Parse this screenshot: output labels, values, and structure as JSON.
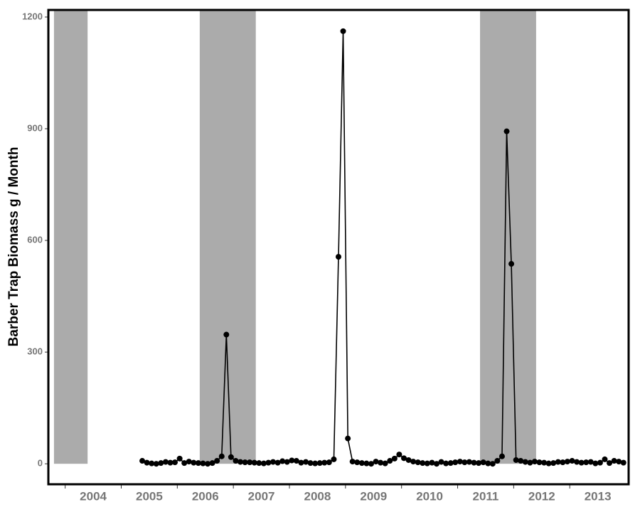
{
  "chart_data": {
    "type": "line",
    "ylabel": "Barber Trap Biomass g / Month",
    "xlim": [
      2003.7,
      2014.05
    ],
    "ylim": [
      -55,
      1219
    ],
    "yticks": [
      0,
      300,
      600,
      900,
      1200
    ],
    "xticks": [
      {
        "value": 2004.5,
        "label": "2004"
      },
      {
        "value": 2005.5,
        "label": "2005"
      },
      {
        "value": 2006.5,
        "label": "2006"
      },
      {
        "value": 2007.5,
        "label": "2007"
      },
      {
        "value": 2008.5,
        "label": "2008"
      },
      {
        "value": 2009.5,
        "label": "2009"
      },
      {
        "value": 2010.5,
        "label": "2010"
      },
      {
        "value": 2011.5,
        "label": "2011"
      },
      {
        "value": 2012.5,
        "label": "2012"
      },
      {
        "value": 2013.5,
        "label": "2013"
      }
    ],
    "xminorticks": [
      2004,
      2005,
      2006,
      2007,
      2008,
      2009,
      2010,
      2011,
      2012,
      2013
    ],
    "shaded_periods": [
      [
        2003.8,
        2004.4
      ],
      [
        2006.4,
        2007.4
      ],
      [
        2011.4,
        2012.4
      ]
    ],
    "shade_color": "#ababab",
    "x": [
      2005.375,
      2005.458,
      2005.542,
      2005.625,
      2005.708,
      2005.792,
      2005.875,
      2005.958,
      2006.042,
      2006.125,
      2006.208,
      2006.292,
      2006.375,
      2006.458,
      2006.542,
      2006.625,
      2006.708,
      2006.792,
      2006.875,
      2006.958,
      2007.042,
      2007.125,
      2007.208,
      2007.292,
      2007.375,
      2007.458,
      2007.542,
      2007.625,
      2007.708,
      2007.792,
      2007.875,
      2007.958,
      2008.042,
      2008.125,
      2008.208,
      2008.292,
      2008.375,
      2008.458,
      2008.542,
      2008.625,
      2008.708,
      2008.792,
      2008.875,
      2008.958,
      2009.042,
      2009.125,
      2009.208,
      2009.292,
      2009.375,
      2009.458,
      2009.542,
      2009.625,
      2009.708,
      2009.792,
      2009.875,
      2009.958,
      2010.042,
      2010.125,
      2010.208,
      2010.292,
      2010.375,
      2010.458,
      2010.542,
      2010.625,
      2010.708,
      2010.792,
      2010.875,
      2010.958,
      2011.042,
      2011.125,
      2011.208,
      2011.292,
      2011.375,
      2011.458,
      2011.542,
      2011.625,
      2011.708,
      2011.792,
      2011.875,
      2011.958,
      2012.042,
      2012.125,
      2012.208,
      2012.292,
      2012.375,
      2012.458,
      2012.542,
      2012.625,
      2012.708,
      2012.792,
      2012.875,
      2012.958,
      2013.042,
      2013.125,
      2013.208,
      2013.292,
      2013.375,
      2013.458,
      2013.542,
      2013.625,
      2013.708,
      2013.792,
      2013.875,
      2013.958
    ],
    "series": [
      {
        "color": "#000000",
        "values": [
          8,
          3,
          1,
          0,
          2,
          5,
          3,
          4,
          14,
          2,
          6,
          3,
          2,
          1,
          0,
          2,
          8,
          20,
          347,
          18,
          8,
          5,
          4,
          4,
          3,
          2,
          1,
          3,
          5,
          3,
          7,
          5,
          9,
          8,
          3,
          5,
          2,
          1,
          2,
          3,
          4,
          12,
          556,
          1162,
          68,
          6,
          4,
          2,
          1,
          0,
          6,
          3,
          1,
          8,
          14,
          25,
          15,
          10,
          6,
          4,
          2,
          1,
          3,
          0,
          5,
          1,
          2,
          4,
          6,
          4,
          5,
          3,
          2,
          4,
          1,
          0,
          8,
          20,
          893,
          537,
          10,
          8,
          5,
          3,
          6,
          4,
          3,
          1,
          2,
          5,
          4,
          6,
          8,
          5,
          3,
          4,
          5,
          1,
          3,
          12,
          2,
          8,
          6,
          3
        ]
      }
    ]
  }
}
